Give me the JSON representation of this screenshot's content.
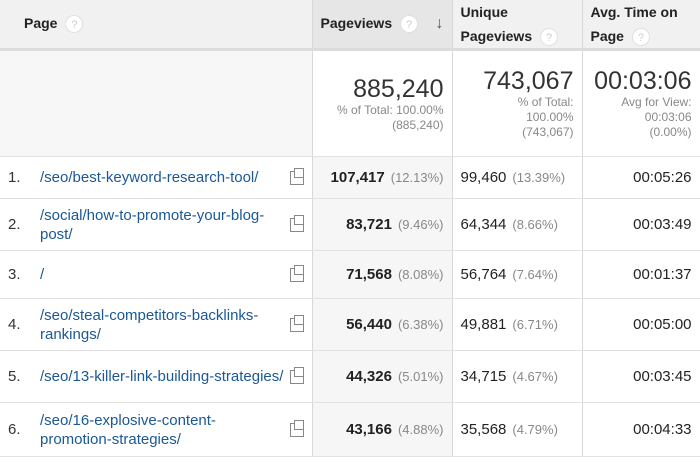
{
  "headers": {
    "page": "Page",
    "pageviews": "Pageviews",
    "unique": "Unique Pageviews",
    "avg_time": "Avg. Time on Page",
    "help": "?",
    "sort_icon": "arrow-down-icon"
  },
  "summary": {
    "pageviews": {
      "value": "885,240",
      "line1": "% of Total: 100.00%",
      "line2": "(885,240)"
    },
    "unique": {
      "value": "743,067",
      "line1": "% of Total:",
      "line2": "100.00%",
      "line3": "(743,067)"
    },
    "avg_time": {
      "value": "00:03:06",
      "line1": "Avg for View:",
      "line2": "00:03:06",
      "line3": "(0.00%)"
    }
  },
  "rows": [
    {
      "n": "1.",
      "page": "/seo/best-keyword-research-tool/",
      "pv": "107,417",
      "pv_pct": "(12.13%)",
      "uv": "99,460",
      "uv_pct": "(13.39%)",
      "time": "00:05:26"
    },
    {
      "n": "2.",
      "page": "/social/how-to-promote-your-blog-post/",
      "pv": "83,721",
      "pv_pct": "(9.46%)",
      "uv": "64,344",
      "uv_pct": "(8.66%)",
      "time": "00:03:49"
    },
    {
      "n": "3.",
      "page": "/",
      "pv": "71,568",
      "pv_pct": "(8.08%)",
      "uv": "56,764",
      "uv_pct": "(7.64%)",
      "time": "00:01:37"
    },
    {
      "n": "4.",
      "page": "/seo/steal-competitors-backlinks-rankings/",
      "pv": "56,440",
      "pv_pct": "(6.38%)",
      "uv": "49,881",
      "uv_pct": "(6.71%)",
      "time": "00:05:00"
    },
    {
      "n": "5.",
      "page": "/seo/13-killer-link-building-strategies/",
      "pv": "44,326",
      "pv_pct": "(5.01%)",
      "uv": "34,715",
      "uv_pct": "(4.67%)",
      "time": "00:03:45"
    },
    {
      "n": "6.",
      "page": "/seo/16-explosive-content-promotion-strategies/",
      "pv": "43,166",
      "pv_pct": "(4.88%)",
      "uv": "35,568",
      "uv_pct": "(4.79%)",
      "time": "00:04:33"
    }
  ],
  "colors": {
    "link": "#1a5896"
  }
}
